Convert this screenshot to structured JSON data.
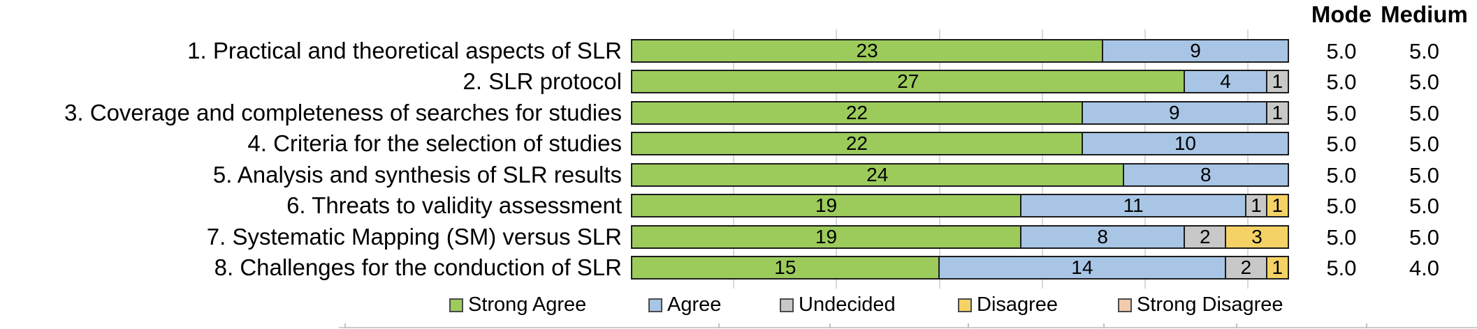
{
  "chart_data": {
    "type": "bar",
    "variant": "horizontal-stacked",
    "title": "",
    "categories": [
      "1. Practical and theoretical aspects of SLR",
      "2. SLR protocol",
      "3. Coverage and completeness of searches for studies",
      "4. Criteria for the selection of studies",
      "5. Analysis and synthesis of SLR results",
      "6. Threats to validity assessment",
      "7. Systematic Mapping (SM) versus SLR",
      "8. Challenges for the conduction of SLR"
    ],
    "series": [
      {
        "name": "Strong Agree",
        "color": "#9ccb5c",
        "values": [
          23,
          27,
          22,
          22,
          24,
          19,
          19,
          15
        ]
      },
      {
        "name": "Agree",
        "color": "#a8c5e5",
        "values": [
          9,
          4,
          9,
          10,
          8,
          11,
          8,
          14
        ]
      },
      {
        "name": "Undecided",
        "color": "#c8c8c8",
        "values": [
          0,
          1,
          1,
          0,
          0,
          1,
          2,
          2
        ]
      },
      {
        "name": "Disagree",
        "color": "#f5d266",
        "values": [
          0,
          0,
          0,
          0,
          0,
          1,
          3,
          1
        ]
      },
      {
        "name": "Strong Disagree",
        "color": "#f2cbae",
        "values": [
          0,
          0,
          0,
          0,
          0,
          0,
          0,
          0
        ]
      }
    ],
    "xlim": [
      0,
      32
    ],
    "gridline_interval": 5,
    "grid": true,
    "legend_position": "bottom",
    "bar_border_color": "#1c1c1c",
    "gridline_color": "#d9d9d9",
    "right_columns": {
      "headers": [
        "Mode",
        "Medium"
      ],
      "rows": [
        [
          "5.0",
          "5.0"
        ],
        [
          "5.0",
          "5.0"
        ],
        [
          "5.0",
          "5.0"
        ],
        [
          "5.0",
          "5.0"
        ],
        [
          "5.0",
          "5.0"
        ],
        [
          "5.0",
          "5.0"
        ],
        [
          "5.0",
          "5.0"
        ],
        [
          "5.0",
          "4.0"
        ]
      ]
    }
  }
}
